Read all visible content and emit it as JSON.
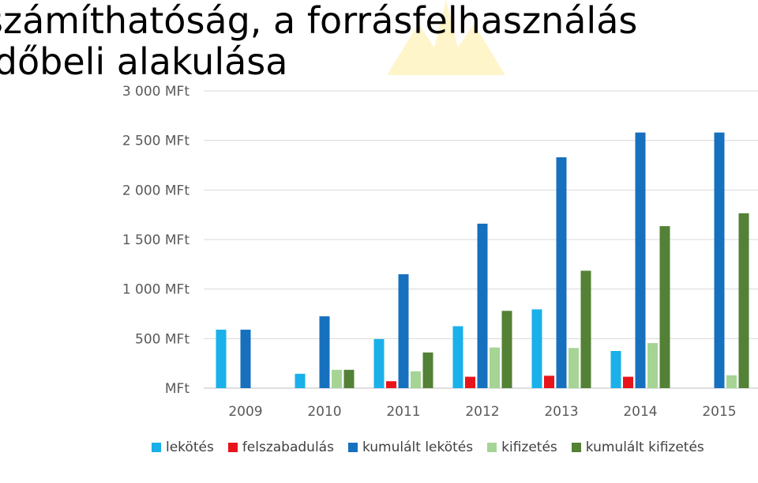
{
  "slide": {
    "title": "számíthatóság, a forrásfelhasználás időbeli alakulása"
  },
  "chart_data": {
    "type": "bar",
    "categories": [
      "2009",
      "2010",
      "2011",
      "2012",
      "2013",
      "2014",
      "2015"
    ],
    "y_ticks": [
      "3 000  MFt",
      "2 500  MFt",
      "2 000  MFt",
      "1 500  MFt",
      "1 000  MFt",
      "500  MFt",
      "MFt"
    ],
    "ylim": [
      0,
      3000
    ],
    "grid": true,
    "legend_position": "bottom",
    "series": [
      {
        "name": "lekötés",
        "color": "#1ab0ea",
        "values": [
          590,
          145,
          495,
          625,
          795,
          375,
          0
        ]
      },
      {
        "name": "felszabadulás",
        "color": "#e8141b",
        "values": [
          0,
          0,
          70,
          115,
          125,
          115,
          0
        ]
      },
      {
        "name": "kumulált lekötés",
        "color": "#1670be",
        "values": [
          590,
          725,
          1150,
          1660,
          2330,
          2580,
          2580
        ]
      },
      {
        "name": "kifizetés",
        "color": "#a5d495",
        "values": [
          0,
          185,
          170,
          410,
          405,
          455,
          130
        ]
      },
      {
        "name": "kumulált kifizetés",
        "color": "#538135",
        "values": [
          0,
          185,
          360,
          780,
          1185,
          1635,
          1765
        ]
      }
    ]
  }
}
